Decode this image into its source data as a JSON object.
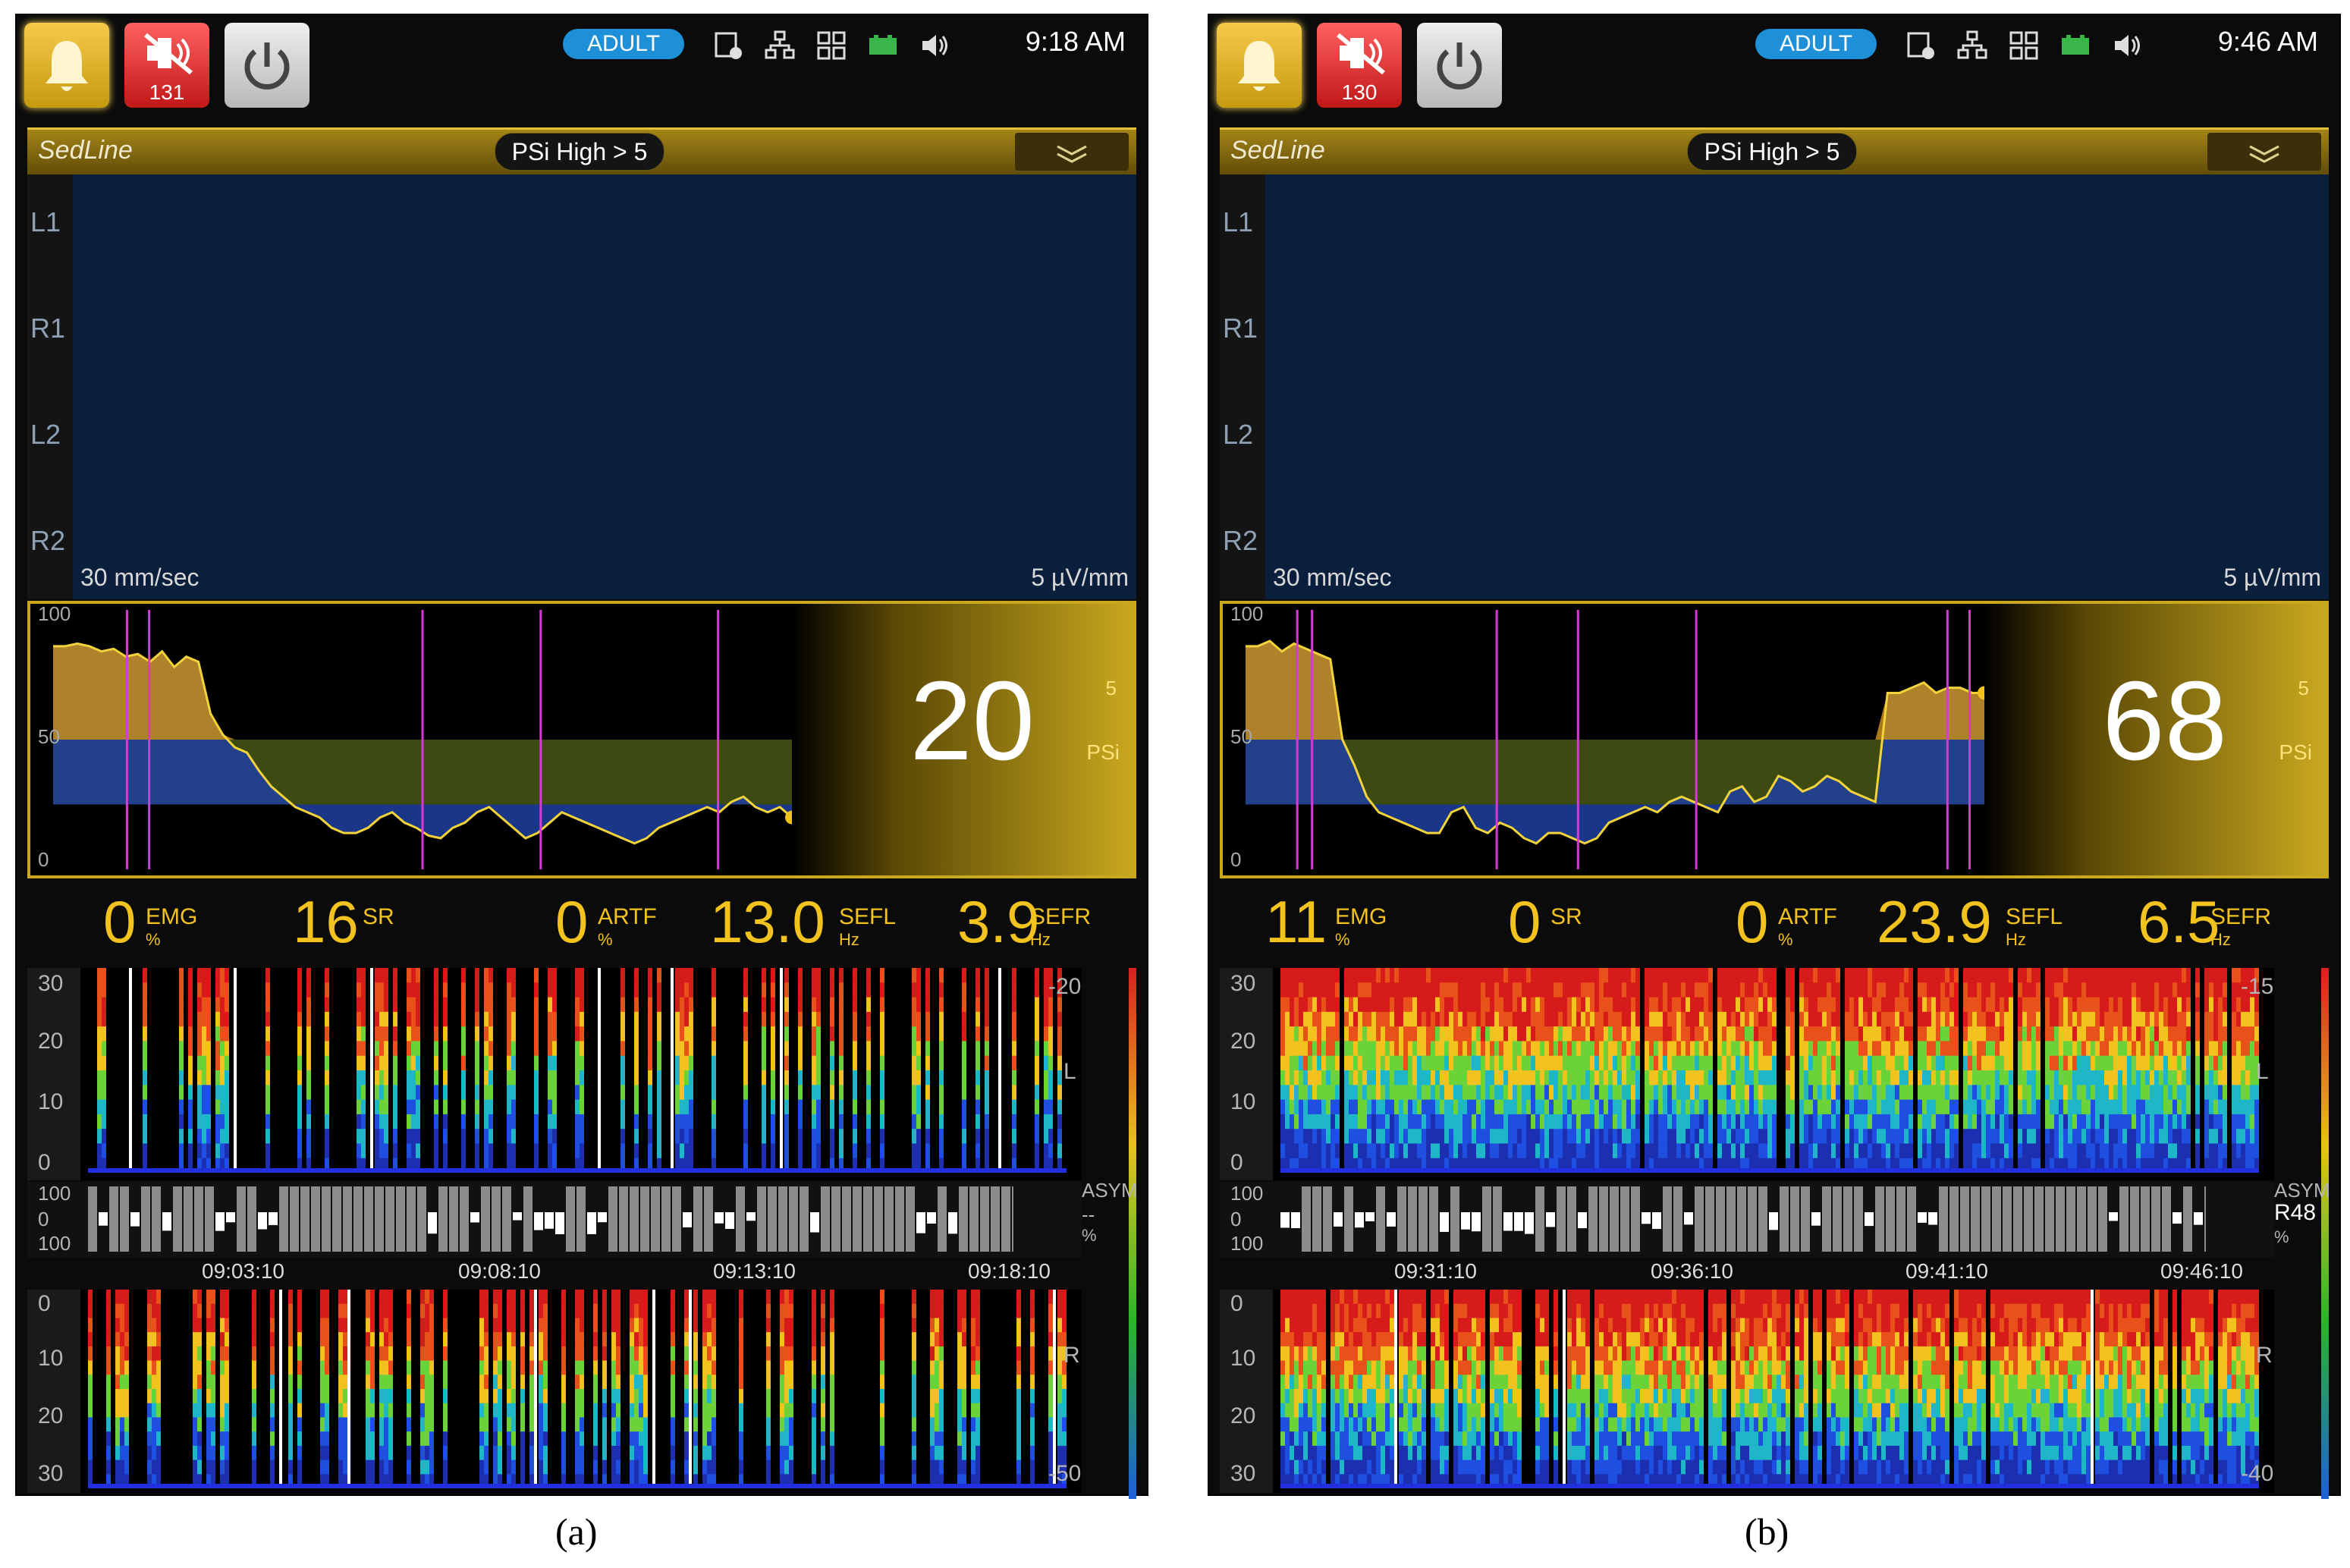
{
  "panels": [
    {
      "caption": "(a)",
      "topbar": {
        "alarm_count": "131",
        "mode": "ADULT",
        "time": "9:18 AM"
      },
      "header": {
        "app_name": "SedLine",
        "alarm_limit": "PSi High > 5"
      },
      "eeg": {
        "leads": [
          "L1",
          "R1",
          "L2",
          "R2"
        ],
        "sweep_speed": "30 mm/sec",
        "scale": "5 µV/mm"
      },
      "trend": {
        "axis_ticks": [
          "100",
          "50",
          "0"
        ],
        "psi_value": "20",
        "psi_label": "PSi",
        "psi_small": "5"
      },
      "params": [
        {
          "value": "0",
          "label": "EMG",
          "unit": "%"
        },
        {
          "value": "16",
          "label": "SR",
          "unit": ""
        },
        {
          "value": "0",
          "label": "ARTF",
          "unit": "%"
        },
        {
          "value": "13.0",
          "label": "SEFL",
          "unit": "Hz"
        },
        {
          "value": "3.9",
          "label": "SEFR",
          "unit": "Hz"
        }
      ],
      "dsa_left": {
        "ticks": [
          "30",
          "20",
          "10",
          "0"
        ],
        "side": "L",
        "scale_top": "-20"
      },
      "asym": {
        "ticks": [
          "100",
          "0",
          "100"
        ],
        "label": "ASYM",
        "value": "--",
        "unit": "%"
      },
      "times": [
        "09:03:10",
        "09:08:10",
        "09:13:10",
        "09:18:10"
      ],
      "dsa_right": {
        "ticks": [
          "0",
          "10",
          "20",
          "30"
        ],
        "side": "R",
        "scale_bottom": "-50"
      }
    },
    {
      "caption": "(b)",
      "topbar": {
        "alarm_count": "130",
        "mode": "ADULT",
        "time": "9:46 AM"
      },
      "header": {
        "app_name": "SedLine",
        "alarm_limit": "PSi High > 5"
      },
      "eeg": {
        "leads": [
          "L1",
          "R1",
          "L2",
          "R2"
        ],
        "sweep_speed": "30 mm/sec",
        "scale": "5 µV/mm"
      },
      "trend": {
        "axis_ticks": [
          "100",
          "50",
          "0"
        ],
        "psi_value": "68",
        "psi_label": "PSi",
        "psi_small": "5"
      },
      "params": [
        {
          "value": "11",
          "label": "EMG",
          "unit": "%"
        },
        {
          "value": "0",
          "label": "SR",
          "unit": ""
        },
        {
          "value": "0",
          "label": "ARTF",
          "unit": "%"
        },
        {
          "value": "23.9",
          "label": "SEFL",
          "unit": "Hz"
        },
        {
          "value": "6.5",
          "label": "SEFR",
          "unit": "Hz"
        }
      ],
      "dsa_left": {
        "ticks": [
          "30",
          "20",
          "10",
          "0"
        ],
        "side": "L",
        "scale_top": "-15"
      },
      "asym": {
        "ticks": [
          "100",
          "0",
          "100"
        ],
        "label": "ASYM",
        "value": "R48",
        "unit": "%"
      },
      "times": [
        "09:31:10",
        "09:36:10",
        "09:41:10",
        "09:46:10"
      ],
      "dsa_right": {
        "ticks": [
          "0",
          "10",
          "20",
          "30"
        ],
        "side": "R",
        "scale_bottom": "-40"
      }
    }
  ],
  "icons": {
    "bell": "bell-icon",
    "alarm_silence": "alarm-silenced-icon",
    "power": "power-icon",
    "status": [
      "export-icon",
      "network-icon",
      "grid-icon",
      "battery-icon",
      "speaker-icon"
    ]
  },
  "colors": {
    "gold": "#c9a81f",
    "psi_yellow": "#f2c21f",
    "mode_blue": "#1e90d8",
    "eeg_bg": "#0a1f3c"
  },
  "trend_series": [
    [
      86,
      86,
      87,
      86,
      84,
      85,
      82,
      83,
      80,
      84,
      78,
      82,
      80,
      60,
      52,
      47,
      45,
      38,
      32,
      28,
      24,
      22,
      20,
      16,
      14,
      14,
      16,
      20,
      22,
      18,
      16,
      13,
      12,
      16,
      18,
      22,
      24,
      20,
      16,
      12,
      14,
      18,
      22,
      20,
      18,
      16,
      14,
      12,
      10,
      12,
      16,
      18,
      20,
      22,
      24,
      22,
      26,
      28,
      24,
      22,
      24,
      20
    ],
    [
      86,
      86,
      88,
      84,
      87,
      85,
      83,
      81,
      50,
      40,
      28,
      22,
      20,
      18,
      16,
      14,
      14,
      22,
      24,
      16,
      14,
      18,
      16,
      12,
      10,
      14,
      14,
      12,
      10,
      12,
      18,
      20,
      22,
      24,
      22,
      26,
      28,
      26,
      24,
      22,
      30,
      32,
      26,
      28,
      36,
      34,
      30,
      32,
      36,
      34,
      30,
      28,
      26,
      68,
      68,
      70,
      72,
      68,
      70,
      70,
      68,
      68
    ]
  ]
}
